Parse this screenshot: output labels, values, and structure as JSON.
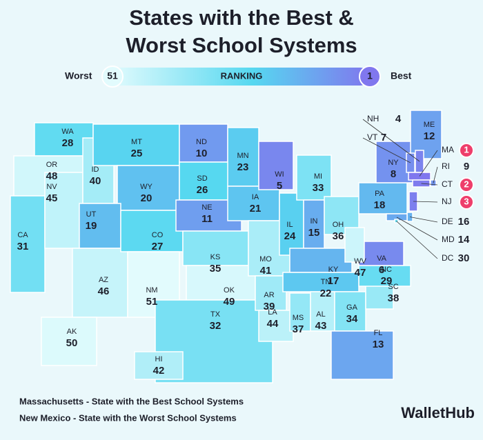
{
  "title_lines": [
    "States with the Best &",
    "Worst School Systems"
  ],
  "legend": {
    "worst_label": "Worst",
    "worst_rank": 51,
    "scale_label": "RANKING",
    "best_rank": 1,
    "best_label": "Best",
    "color_scale": [
      "#8077ee",
      "#56d8f0",
      "#e2fbfd"
    ]
  },
  "states": [
    {
      "code": "WA",
      "rank": 28
    },
    {
      "code": "OR",
      "rank": 48
    },
    {
      "code": "CA",
      "rank": 31
    },
    {
      "code": "NV",
      "rank": 45
    },
    {
      "code": "ID",
      "rank": 40
    },
    {
      "code": "MT",
      "rank": 25
    },
    {
      "code": "WY",
      "rank": 20
    },
    {
      "code": "UT",
      "rank": 19
    },
    {
      "code": "AZ",
      "rank": 46
    },
    {
      "code": "CO",
      "rank": 27
    },
    {
      "code": "NM",
      "rank": 51
    },
    {
      "code": "ND",
      "rank": 10
    },
    {
      "code": "SD",
      "rank": 26
    },
    {
      "code": "NE",
      "rank": 11
    },
    {
      "code": "KS",
      "rank": 35
    },
    {
      "code": "OK",
      "rank": 49
    },
    {
      "code": "TX",
      "rank": 32
    },
    {
      "code": "MN",
      "rank": 23
    },
    {
      "code": "IA",
      "rank": 21
    },
    {
      "code": "MO",
      "rank": 41
    },
    {
      "code": "AR",
      "rank": 39
    },
    {
      "code": "LA",
      "rank": 44
    },
    {
      "code": "WI",
      "rank": 5
    },
    {
      "code": "IL",
      "rank": 24
    },
    {
      "code": "MI",
      "rank": 33
    },
    {
      "code": "IN",
      "rank": 15
    },
    {
      "code": "OH",
      "rank": 36
    },
    {
      "code": "KY",
      "rank": 17
    },
    {
      "code": "TN",
      "rank": 22
    },
    {
      "code": "MS",
      "rank": 37
    },
    {
      "code": "AL",
      "rank": 43
    },
    {
      "code": "GA",
      "rank": 34
    },
    {
      "code": "FL",
      "rank": 13
    },
    {
      "code": "SC",
      "rank": 38
    },
    {
      "code": "NC",
      "rank": 29
    },
    {
      "code": "VA",
      "rank": 6
    },
    {
      "code": "WV",
      "rank": 47
    },
    {
      "code": "PA",
      "rank": 18
    },
    {
      "code": "NY",
      "rank": 8
    },
    {
      "code": "ME",
      "rank": 12
    },
    {
      "code": "AK",
      "rank": 50
    },
    {
      "code": "HI",
      "rank": 42
    },
    {
      "code": "NH",
      "rank": 4
    },
    {
      "code": "VT",
      "rank": 7
    },
    {
      "code": "MA",
      "rank": 1
    },
    {
      "code": "RI",
      "rank": 9
    },
    {
      "code": "CT",
      "rank": 2
    },
    {
      "code": "NJ",
      "rank": 3
    },
    {
      "code": "DE",
      "rank": 16
    },
    {
      "code": "MD",
      "rank": 14
    },
    {
      "code": "DC",
      "rank": 30
    }
  ],
  "notes": [
    "Massachusetts - State with the Best School Systems",
    "New Mexico - State with the Worst School Systems"
  ],
  "brand": "WalletHub"
}
